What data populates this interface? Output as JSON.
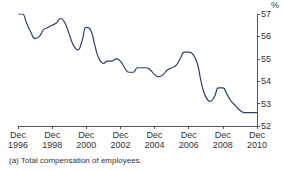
{
  "chart_data": {
    "type": "line",
    "ylabel": "%",
    "annotation": "(a) Total compensation of employees.",
    "categories": [
      "Dec\n1996",
      null,
      null,
      null,
      null,
      null,
      null,
      null,
      "Dec\n1998",
      null,
      null,
      null,
      null,
      null,
      null,
      null,
      "Dec\n2000",
      null,
      null,
      null,
      null,
      null,
      null,
      null,
      "Dec\n2002",
      null,
      null,
      null,
      null,
      null,
      null,
      null,
      "Dec\n2004",
      null,
      null,
      null,
      null,
      null,
      null,
      null,
      "Dec\n2006",
      null,
      null,
      null,
      null,
      null,
      null,
      null,
      "Dec\n2008",
      null,
      null,
      null,
      null,
      null,
      null,
      null,
      "Dec\n2010"
    ],
    "values": [
      57.0,
      57.0,
      56.6,
      56.2,
      55.9,
      56.0,
      56.3,
      56.4,
      56.5,
      56.6,
      56.8,
      56.6,
      56.1,
      55.6,
      55.4,
      55.8,
      56.4,
      56.3,
      55.6,
      55.0,
      54.8,
      54.9,
      54.9,
      55.0,
      54.9,
      54.6,
      54.4,
      54.4,
      54.6,
      54.6,
      54.6,
      54.5,
      54.3,
      54.2,
      54.3,
      54.5,
      54.6,
      54.7,
      55.0,
      55.3,
      55.3,
      55.2,
      54.8,
      53.9,
      53.3,
      53.1,
      53.3,
      53.7,
      53.7,
      53.4,
      53.1,
      52.9,
      52.7,
      52.6,
      52.6,
      52.6,
      52.6
    ],
    "color": "#2b3f6b",
    "ylim": [
      52,
      57
    ],
    "yticks": [
      52,
      53,
      54,
      55,
      56,
      57
    ],
    "grid": false
  }
}
